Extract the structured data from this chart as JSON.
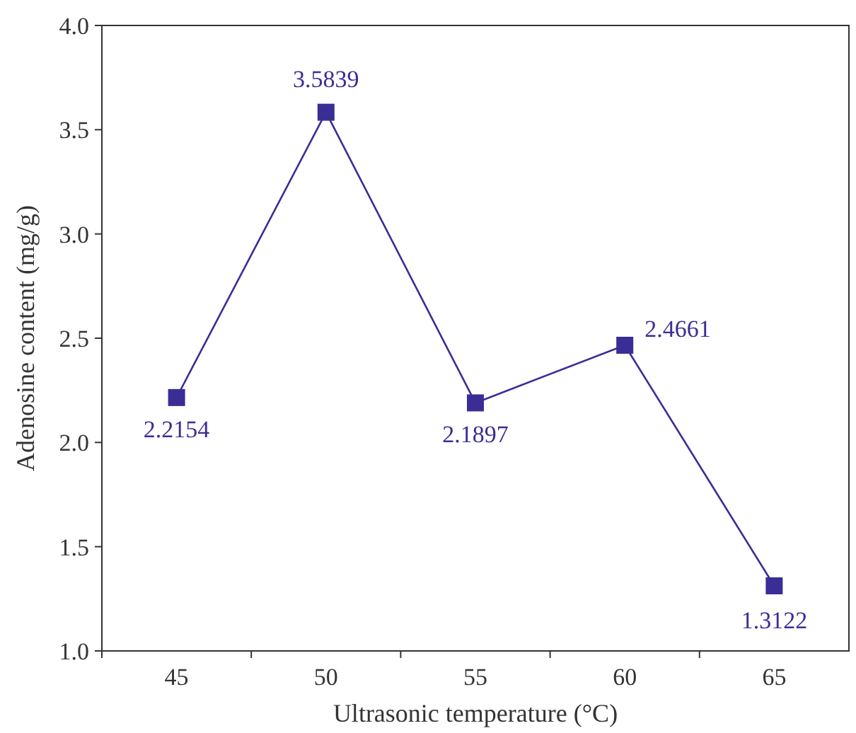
{
  "chart_data": {
    "type": "line",
    "xlabel": "Ultrasonic temperature (°C)",
    "ylabel": "Adenosine content (mg/g)",
    "categories": [
      "45",
      "50",
      "55",
      "60",
      "65"
    ],
    "series": [
      {
        "color": "#3a2e96",
        "values": [
          2.2154,
          3.5839,
          2.1897,
          2.4661,
          1.3122
        ]
      }
    ],
    "ylim": [
      1.0,
      4.0
    ],
    "yticks": [
      {
        "value": 1.0,
        "label": "1.0"
      },
      {
        "value": 1.5,
        "label": "1.5"
      },
      {
        "value": 2.0,
        "label": "2.0"
      },
      {
        "value": 2.5,
        "label": "2.5"
      },
      {
        "value": 3.0,
        "label": "3.0"
      },
      {
        "value": 3.5,
        "label": "3.5"
      },
      {
        "value": 4.0,
        "label": "4.0"
      }
    ],
    "marker": "square",
    "line_style": "solid",
    "data_labels": true
  }
}
